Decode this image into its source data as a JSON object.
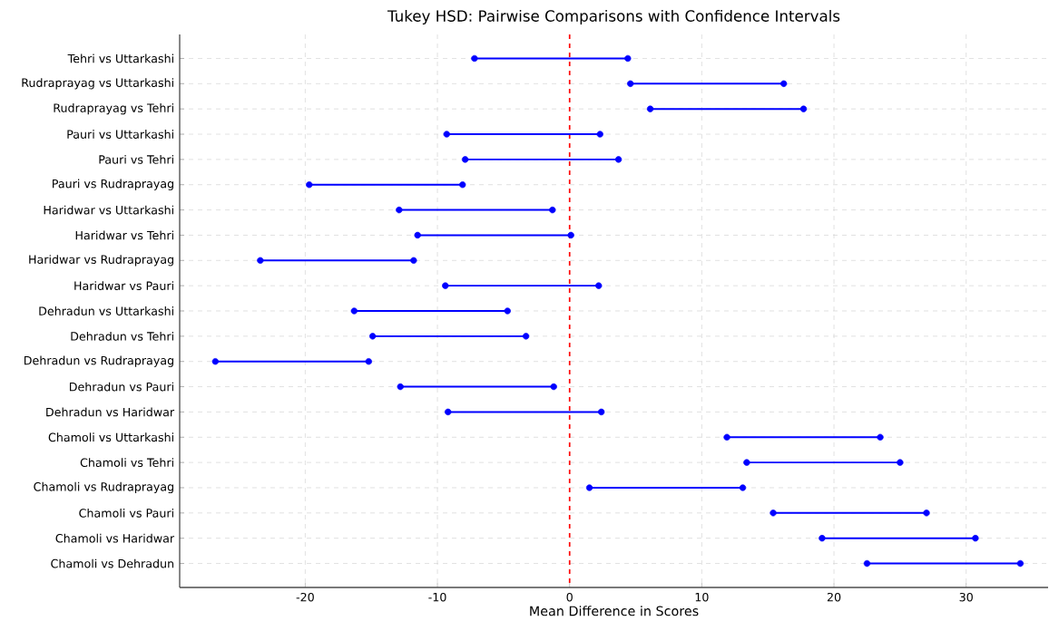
{
  "chart_data": {
    "type": "bar",
    "orientation": "horizontal",
    "title": "Tukey HSD: Pairwise Comparisons with Confidence Intervals",
    "xlabel": "Mean Difference in Scores",
    "categories": [
      "Tehri vs Uttarkashi",
      "Rudraprayag vs Uttarkashi",
      "Rudraprayag vs Tehri",
      "Pauri vs Uttarkashi",
      "Pauri vs Tehri",
      "Pauri vs Rudraprayag",
      "Haridwar vs Uttarkashi",
      "Haridwar vs Tehri",
      "Haridwar vs Rudraprayag",
      "Haridwar vs Pauri",
      "Dehradun vs Uttarkashi",
      "Dehradun vs Tehri",
      "Dehradun vs Rudraprayag",
      "Dehradun vs Pauri",
      "Dehradun vs Haridwar",
      "Chamoli vs Uttarkashi",
      "Chamoli vs Tehri",
      "Chamoli vs Rudraprayag",
      "Chamoli vs Pauri",
      "Chamoli vs Haridwar",
      "Chamoli vs Dehradun"
    ],
    "series": [
      {
        "color": "#0000ff",
        "base": [
          -7.2,
          4.6,
          6.1,
          -9.3,
          -7.9,
          -19.7,
          -12.9,
          -11.5,
          -23.4,
          -9.4,
          -16.3,
          -14.9,
          -26.8,
          -12.8,
          -9.2,
          11.9,
          13.4,
          1.5,
          15.4,
          19.1,
          22.5
        ],
        "values": [
          11.6,
          11.6,
          11.6,
          11.6,
          11.6,
          11.6,
          11.6,
          11.6,
          11.6,
          11.6,
          11.6,
          11.6,
          11.6,
          11.6,
          11.6,
          11.6,
          11.6,
          11.6,
          11.6,
          11.6,
          11.6
        ]
      },
      {
        "type": "scatter",
        "color": "#0000ff",
        "marker": "circle",
        "x": [
          "Tehri vs Uttarkashi",
          "Rudraprayag vs Uttarkashi",
          "Rudraprayag vs Tehri",
          "Pauri vs Uttarkashi",
          "Pauri vs Tehri",
          "Pauri vs Rudraprayag",
          "Haridwar vs Uttarkashi",
          "Haridwar vs Tehri",
          "Haridwar vs Rudraprayag",
          "Haridwar vs Pauri",
          "Dehradun vs Uttarkashi",
          "Dehradun vs Tehri",
          "Dehradun vs Rudraprayag",
          "Dehradun vs Pauri",
          "Dehradun vs Haridwar",
          "Chamoli vs Uttarkashi",
          "Chamoli vs Tehri",
          "Chamoli vs Rudraprayag",
          "Chamoli vs Pauri",
          "Chamoli vs Haridwar",
          "Chamoli vs Dehradun"
        ],
        "values": [
          -7.2,
          4.6,
          6.1,
          -9.3,
          -7.9,
          -19.7,
          -12.9,
          -11.5,
          -23.4,
          -9.4,
          -16.3,
          -14.9,
          -26.8,
          -12.8,
          -9.2,
          11.9,
          13.4,
          1.5,
          15.4,
          19.1,
          22.5
        ]
      },
      {
        "type": "scatter",
        "color": "#0000ff",
        "marker": "circle",
        "x": [
          "Tehri vs Uttarkashi",
          "Rudraprayag vs Uttarkashi",
          "Rudraprayag vs Tehri",
          "Pauri vs Uttarkashi",
          "Pauri vs Tehri",
          "Pauri vs Rudraprayag",
          "Haridwar vs Uttarkashi",
          "Haridwar vs Tehri",
          "Haridwar vs Rudraprayag",
          "Haridwar vs Pauri",
          "Dehradun vs Uttarkashi",
          "Dehradun vs Tehri",
          "Dehradun vs Rudraprayag",
          "Dehradun vs Pauri",
          "Dehradun vs Haridwar",
          "Chamoli vs Uttarkashi",
          "Chamoli vs Tehri",
          "Chamoli vs Rudraprayag",
          "Chamoli vs Pauri",
          "Chamoli vs Haridwar",
          "Chamoli vs Dehradun"
        ],
        "values": [
          4.4,
          16.2,
          17.7,
          2.3,
          3.7,
          -8.1,
          -1.3,
          0.1,
          -11.8,
          2.2,
          -4.7,
          -3.3,
          -15.2,
          -1.2,
          2.4,
          23.5,
          25.0,
          13.1,
          27.0,
          30.7,
          34.1
        ]
      }
    ],
    "xlim": [
      -29.5,
      36.2
    ],
    "xticks": [
      -20,
      -10,
      0,
      10,
      20,
      30
    ],
    "grid": true,
    "ref_lines": [
      {
        "axis": "x",
        "value": 0,
        "color": "#ff0000",
        "line_style": "dashed"
      }
    ]
  }
}
